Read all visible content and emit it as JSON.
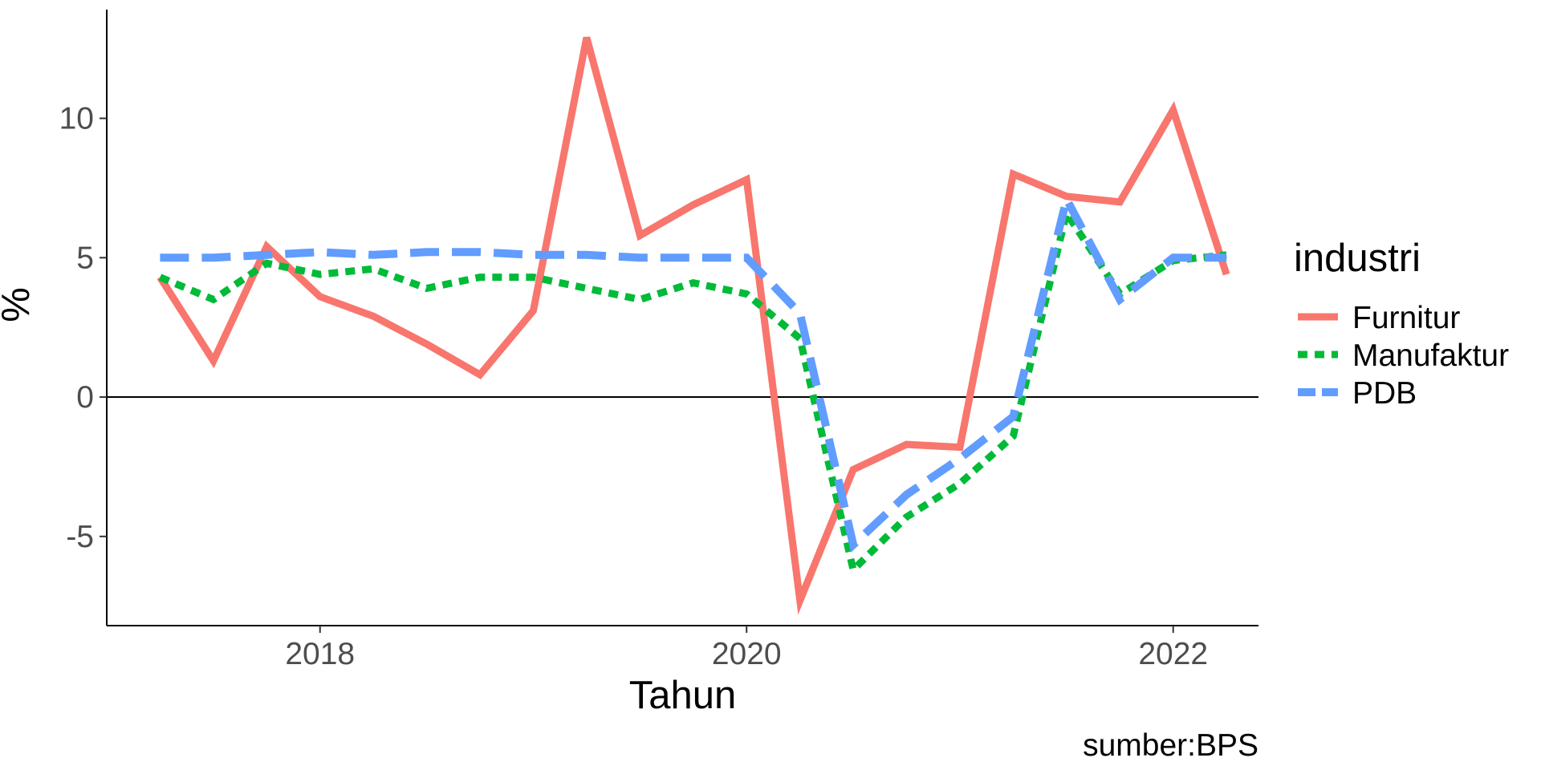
{
  "chart_data": {
    "type": "line",
    "title": "",
    "xlabel": "Tahun",
    "ylabel": "%",
    "caption": "sumber:BPS",
    "xlim": [
      2017.0,
      2022.4
    ],
    "ylim": [
      -8.2,
      13.9
    ],
    "x_ticks": [
      {
        "value": 2018,
        "label": "2018"
      },
      {
        "value": 2020,
        "label": "2020"
      },
      {
        "value": 2022,
        "label": "2022"
      }
    ],
    "y_ticks": [
      {
        "value": -5,
        "label": "-5"
      },
      {
        "value": 0,
        "label": "0"
      },
      {
        "value": 5,
        "label": "5"
      },
      {
        "value": 10,
        "label": "10"
      }
    ],
    "reference_line_y": 0,
    "grid": false,
    "legend": {
      "title": "industri",
      "position": "right"
    },
    "x": [
      2017.25,
      2017.5,
      2017.75,
      2018.0,
      2018.25,
      2018.5,
      2018.75,
      2019.0,
      2019.25,
      2019.5,
      2019.75,
      2020.0,
      2020.25,
      2020.5,
      2020.75,
      2021.0,
      2021.25,
      2021.5,
      2021.75,
      2022.0,
      2022.25
    ],
    "series": [
      {
        "name": "Furnitur",
        "color": "#F8766D",
        "dash": "solid",
        "values": [
          4.3,
          1.3,
          5.4,
          3.6,
          2.9,
          1.9,
          0.8,
          3.1,
          12.9,
          5.8,
          6.9,
          7.8,
          -7.3,
          -2.6,
          -1.7,
          -1.8,
          8.0,
          7.2,
          7.0,
          10.3,
          4.4
        ]
      },
      {
        "name": "Manufaktur",
        "color": "#00BA38",
        "dash": "dotted",
        "values": [
          4.3,
          3.5,
          4.8,
          4.4,
          4.6,
          3.9,
          4.3,
          4.3,
          3.9,
          3.5,
          4.1,
          3.7,
          2.1,
          -6.2,
          -4.3,
          -3.1,
          -1.4,
          6.6,
          3.7,
          4.9,
          5.1
        ]
      },
      {
        "name": "PDB",
        "color": "#619CFF",
        "dash": "dashed",
        "values": [
          5.0,
          5.0,
          5.1,
          5.2,
          5.1,
          5.2,
          5.2,
          5.1,
          5.1,
          5.0,
          5.0,
          5.0,
          3.0,
          -5.3,
          -3.5,
          -2.2,
          -0.7,
          7.1,
          3.5,
          5.0,
          5.0
        ]
      }
    ]
  }
}
